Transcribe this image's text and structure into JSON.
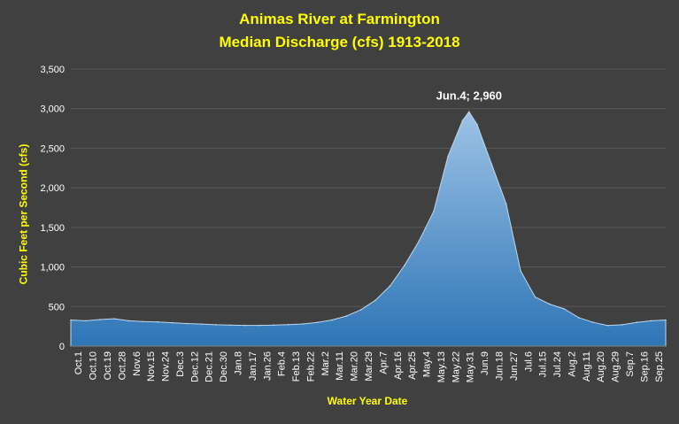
{
  "colors": {
    "background": "#404040",
    "title": "#ffff00",
    "text": "#ffffff",
    "fill": "#2e75b6",
    "grid": "#595959"
  },
  "chart_data": {
    "type": "area",
    "title": "Animas River at Farmington",
    "subtitle": "Median Discharge (cfs) 1913-2018",
    "xlabel": "Water Year Date",
    "ylabel": "Cubic Feet per Second (cfs)",
    "ylim": [
      0,
      3500
    ],
    "yticks": [
      "0",
      "500",
      "1,000",
      "1,500",
      "2,000",
      "2,500",
      "3,000",
      "3,500"
    ],
    "grid": true,
    "legend": "none",
    "xtick_labels": [
      "Oct.1",
      "Oct.10",
      "Oct.19",
      "Oct.28",
      "Nov.6",
      "Nov.15",
      "Nov.24",
      "Dec.3",
      "Dec.12",
      "Dec.21",
      "Dec.30",
      "Jan.8",
      "Jan.17",
      "Jan.26",
      "Feb.4",
      "Feb.13",
      "Feb.22",
      "Mar.2",
      "Mar.11",
      "Mar.20",
      "Mar.29",
      "Apr.7",
      "Apr.16",
      "Apr.25",
      "May.4",
      "May.13",
      "May.22",
      "May.31",
      "Jun.9",
      "Jun.18",
      "Jun.27",
      "Jul.6",
      "Jul.15",
      "Jul.24",
      "Aug.2",
      "Aug.11",
      "Aug.20",
      "Aug.29",
      "Sep.7",
      "Sep.16",
      "Sep.25"
    ],
    "series": [
      {
        "x": [
          "Oct.1",
          "Oct.10",
          "Oct.19",
          "Oct.28",
          "Nov.6",
          "Nov.15",
          "Nov.24",
          "Dec.3",
          "Dec.12",
          "Dec.21",
          "Dec.30",
          "Jan.8",
          "Jan.17",
          "Jan.26",
          "Feb.4",
          "Feb.13",
          "Feb.22",
          "Mar.2",
          "Mar.11",
          "Mar.20",
          "Mar.29",
          "Apr.7",
          "Apr.16",
          "Apr.25",
          "May.4",
          "May.13",
          "May.22",
          "May.31",
          "Jun.4",
          "Jun.9",
          "Jun.18",
          "Jun.27",
          "Jul.6",
          "Jul.15",
          "Jul.24",
          "Aug.2",
          "Aug.11",
          "Aug.20",
          "Aug.29",
          "Sep.7",
          "Sep.16",
          "Sep.25",
          "Sep.30"
        ],
        "values": [
          330,
          320,
          335,
          345,
          320,
          310,
          305,
          295,
          285,
          278,
          270,
          265,
          262,
          262,
          265,
          272,
          280,
          300,
          330,
          380,
          460,
          580,
          760,
          1020,
          1330,
          1700,
          2400,
          2850,
          2960,
          2800,
          2300,
          1800,
          950,
          620,
          530,
          470,
          360,
          300,
          260,
          270,
          300,
          320,
          330
        ]
      }
    ],
    "annotations": [
      {
        "x": "Jun.4",
        "y": 2960,
        "text": "Jun.4; 2,960"
      }
    ]
  }
}
